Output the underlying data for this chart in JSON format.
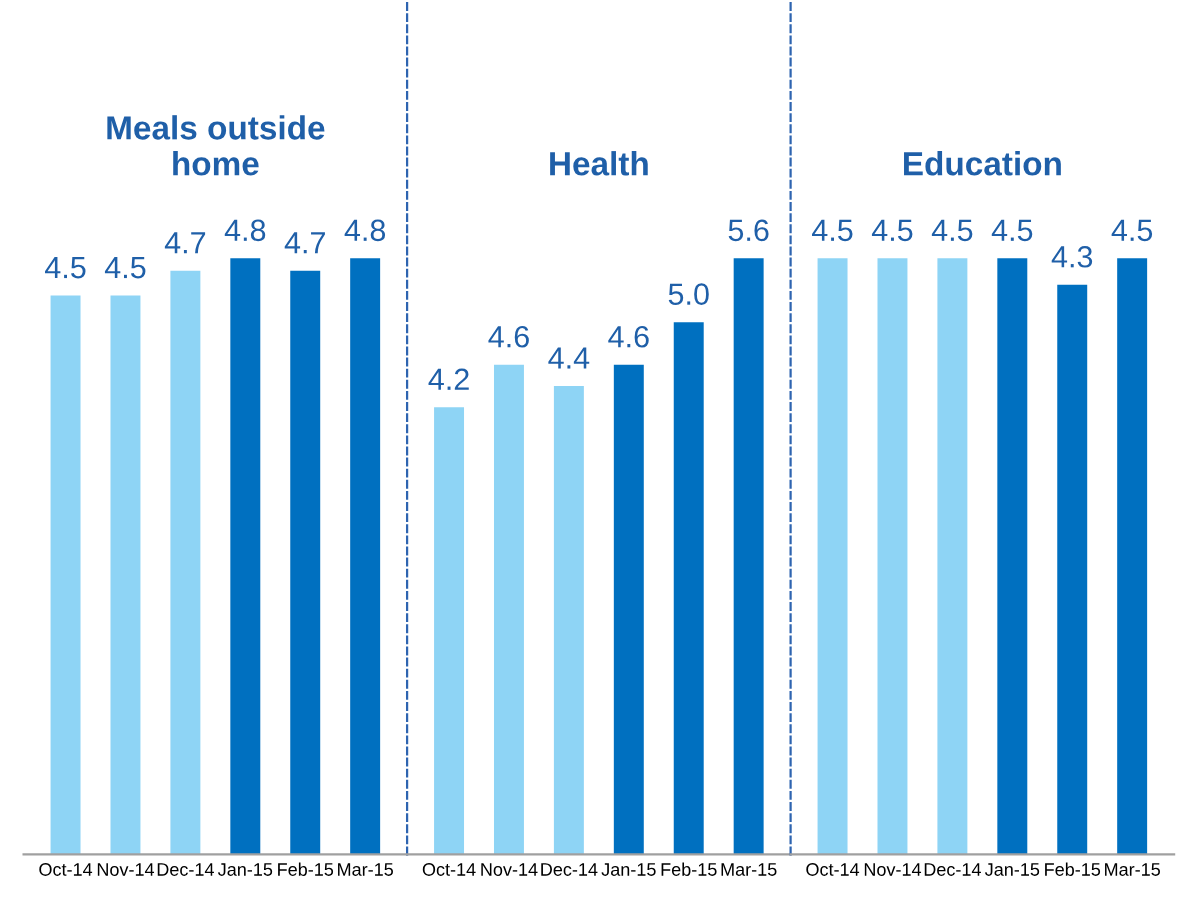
{
  "chart_data": [
    {
      "type": "bar",
      "title": "Meals outside\nhome",
      "categories": [
        "Oct-14",
        "Nov-14",
        "Dec-14",
        "Jan-15",
        "Feb-15",
        "Mar-15"
      ],
      "values": [
        4.5,
        4.5,
        4.7,
        4.8,
        4.7,
        4.8
      ],
      "colors": [
        "#8ed4f5",
        "#8ed4f5",
        "#8ed4f5",
        "#0070c0",
        "#0070c0",
        "#0070c0"
      ],
      "data_labels": true,
      "tick_labels": "x"
    },
    {
      "type": "bar",
      "title": "Health",
      "categories": [
        "Oct-14",
        "Nov-14",
        "Dec-14",
        "Jan-15",
        "Feb-15",
        "Mar-15"
      ],
      "values": [
        4.2,
        4.6,
        4.4,
        4.6,
        5.0,
        5.6
      ],
      "colors": [
        "#8ed4f5",
        "#8ed4f5",
        "#8ed4f5",
        "#0070c0",
        "#0070c0",
        "#0070c0"
      ],
      "value_labels": [
        "4.2",
        "4.6",
        "4.4",
        "4.6",
        "5.0",
        "5.6"
      ],
      "tick_labels": "x"
    },
    {
      "type": "bar",
      "title": "Education",
      "categories": [
        "Oct-14",
        "Nov-14",
        "Dec-14",
        "Jan-15",
        "Feb-15",
        "Mar-15"
      ],
      "values": [
        4.5,
        4.5,
        4.5,
        4.5,
        4.3,
        4.5
      ],
      "colors": [
        "#8ed4f5",
        "#8ed4f5",
        "#8ed4f5",
        "#0070c0",
        "#0070c0",
        "#0070c0"
      ],
      "data_labels": true,
      "tick_labels": "x"
    }
  ]
}
